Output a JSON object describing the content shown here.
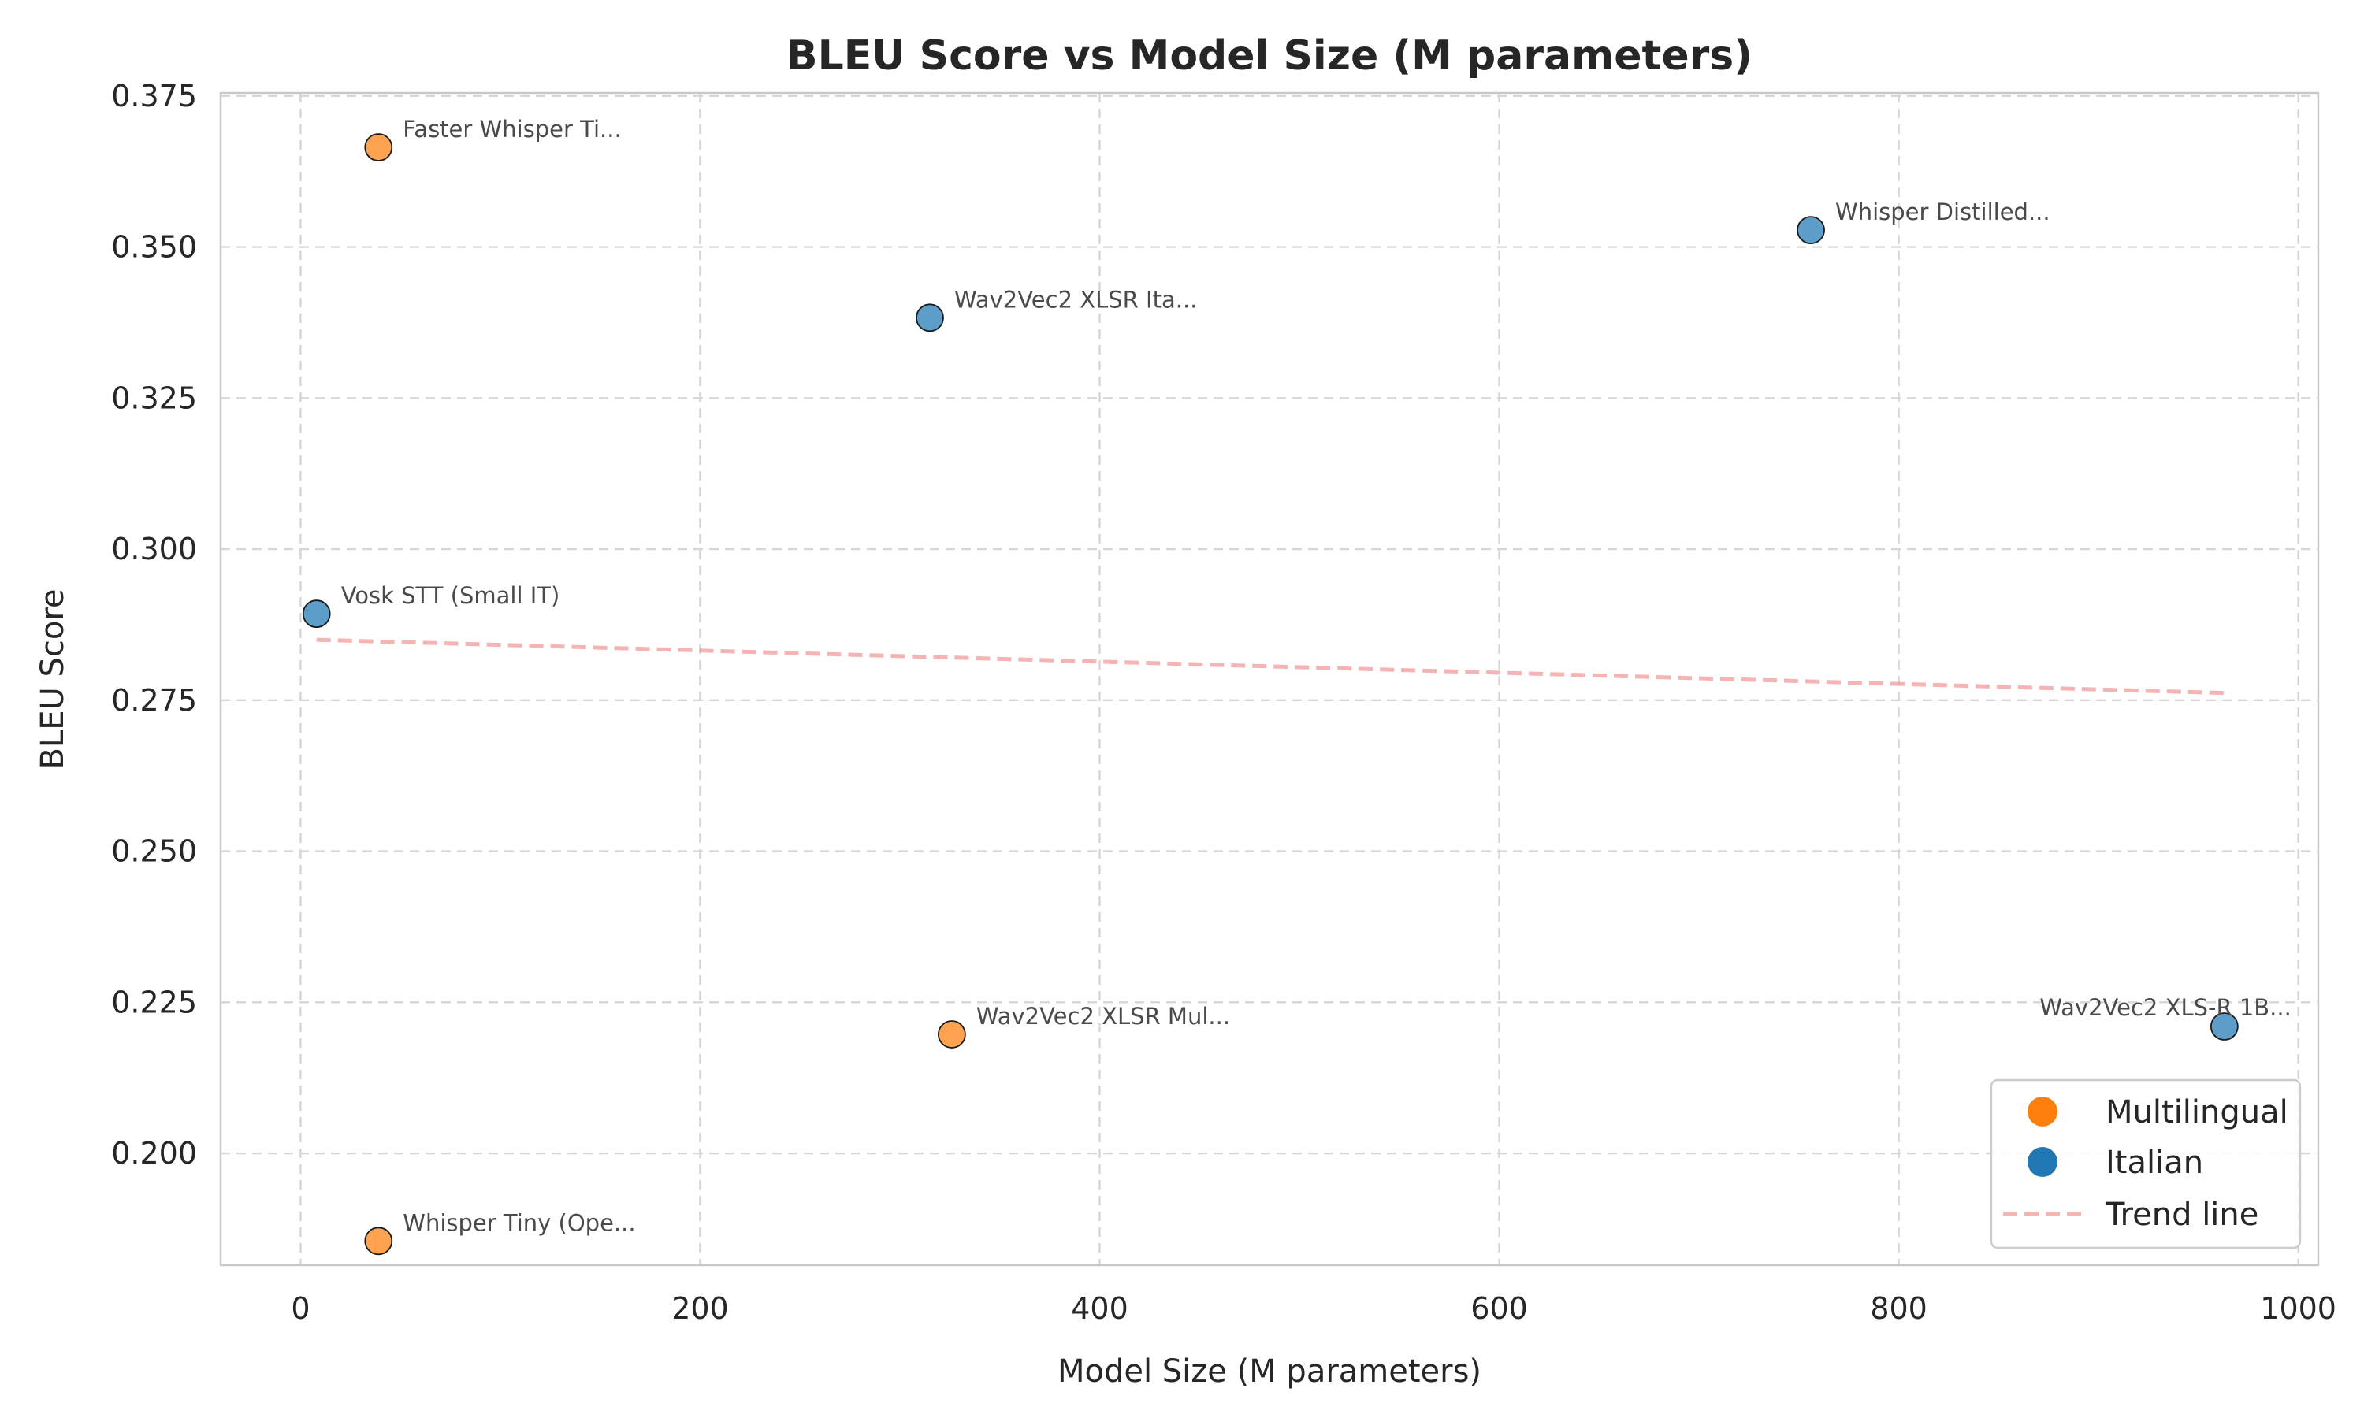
{
  "chart_data": {
    "type": "scatter",
    "title": "BLEU Score vs Model Size (M parameters)",
    "xlabel": "Model Size (M parameters)",
    "ylabel": "BLEU Score",
    "xlim": [
      -40,
      1010
    ],
    "ylim": [
      0.1815,
      0.3755
    ],
    "xticks": [
      0,
      200,
      400,
      600,
      800,
      1000
    ],
    "yticks": [
      0.2,
      0.225,
      0.25,
      0.275,
      0.3,
      0.325,
      0.35,
      0.375
    ],
    "xtick_labels": [
      "0",
      "200",
      "400",
      "600",
      "800",
      "1000"
    ],
    "ytick_labels": [
      "0.200",
      "0.225",
      "0.250",
      "0.275",
      "0.300",
      "0.325",
      "0.350",
      "0.375"
    ],
    "grid": true,
    "legend_position": "bottom-right",
    "colors": {
      "Multilingual": "#ff7f0e",
      "Italian": "#1f77b4",
      "trend": "#f08080"
    },
    "series": [
      {
        "name": "Multilingual",
        "points": [
          {
            "label": "Faster Whisper Ti...",
            "x": 39,
            "y": 0.3665
          },
          {
            "label": "Wav2Vec2 XLSR Mul...",
            "x": 326,
            "y": 0.2197
          },
          {
            "label": "Whisper Tiny (Ope...",
            "x": 39,
            "y": 0.1855
          }
        ]
      },
      {
        "name": "Italian",
        "points": [
          {
            "label": "Whisper Distilled...",
            "x": 756,
            "y": 0.3528
          },
          {
            "label": "Wav2Vec2 XLSR Ita...",
            "x": 315,
            "y": 0.3383
          },
          {
            "label": "Vosk STT (Small IT)",
            "x": 8,
            "y": 0.2893
          },
          {
            "label": "Wav2Vec2 XLS-R 1B...",
            "x": 963,
            "y": 0.221
          }
        ]
      }
    ],
    "trend_line": {
      "name": "Trend line",
      "x": [
        8,
        963
      ],
      "y": [
        0.285,
        0.2762
      ]
    },
    "legend": [
      "Multilingual",
      "Italian",
      "Trend line"
    ]
  }
}
